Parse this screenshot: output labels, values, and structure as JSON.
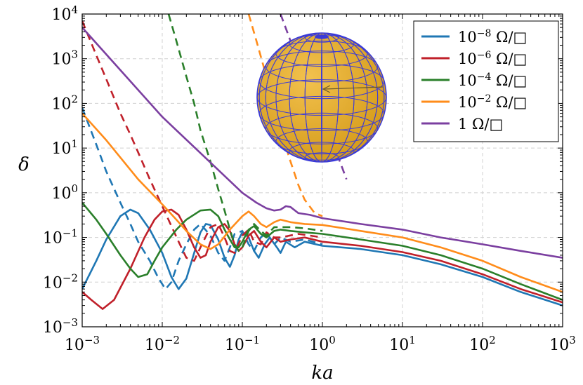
{
  "chart_data": {
    "type": "line",
    "title": "",
    "xlabel": "ka",
    "ylabel": "δ",
    "xscale": "log",
    "yscale": "log",
    "xlim": [
      0.001,
      1000
    ],
    "ylim": [
      0.001,
      10000
    ],
    "grid": true,
    "legend_position": "top-right",
    "x_ticks": [
      {
        "value": 0.001,
        "base": "10",
        "exp": "−3"
      },
      {
        "value": 0.01,
        "base": "10",
        "exp": "−2"
      },
      {
        "value": 0.1,
        "base": "10",
        "exp": "−1"
      },
      {
        "value": 1,
        "base": "10",
        "exp": "0"
      },
      {
        "value": 10,
        "base": "10",
        "exp": "1"
      },
      {
        "value": 100,
        "base": "10",
        "exp": "2"
      },
      {
        "value": 1000,
        "base": "10",
        "exp": "3"
      }
    ],
    "y_ticks": [
      {
        "value": 0.001,
        "base": "10",
        "exp": "−3"
      },
      {
        "value": 0.01,
        "base": "10",
        "exp": "−2"
      },
      {
        "value": 0.1,
        "base": "10",
        "exp": "−1"
      },
      {
        "value": 1,
        "base": "10",
        "exp": "0"
      },
      {
        "value": 10,
        "base": "10",
        "exp": "1"
      },
      {
        "value": 100,
        "base": "10",
        "exp": "2"
      },
      {
        "value": 1000,
        "base": "10",
        "exp": "3"
      },
      {
        "value": 10000,
        "base": "10",
        "exp": "4"
      }
    ],
    "series": [
      {
        "name": "10⁻⁸ Ω/□",
        "legend_base": "10",
        "legend_exp": "−8",
        "legend_unit": " Ω/□",
        "color": "#1f77b4",
        "solid": [
          [
            0.001,
            0.007
          ],
          [
            0.0015,
            0.03
          ],
          [
            0.002,
            0.09
          ],
          [
            0.003,
            0.3
          ],
          [
            0.004,
            0.42
          ],
          [
            0.005,
            0.35
          ],
          [
            0.007,
            0.15
          ],
          [
            0.01,
            0.045
          ],
          [
            0.013,
            0.013
          ],
          [
            0.016,
            0.007
          ],
          [
            0.02,
            0.012
          ],
          [
            0.025,
            0.045
          ],
          [
            0.03,
            0.13
          ],
          [
            0.035,
            0.2
          ],
          [
            0.04,
            0.19
          ],
          [
            0.05,
            0.09
          ],
          [
            0.06,
            0.035
          ],
          [
            0.07,
            0.022
          ],
          [
            0.08,
            0.04
          ],
          [
            0.09,
            0.09
          ],
          [
            0.1,
            0.13
          ],
          [
            0.12,
            0.1
          ],
          [
            0.14,
            0.05
          ],
          [
            0.16,
            0.035
          ],
          [
            0.19,
            0.07
          ],
          [
            0.22,
            0.1
          ],
          [
            0.27,
            0.06
          ],
          [
            0.3,
            0.045
          ],
          [
            0.35,
            0.08
          ],
          [
            0.45,
            0.06
          ],
          [
            0.6,
            0.08
          ],
          [
            1,
            0.065
          ],
          [
            3,
            0.055
          ],
          [
            10,
            0.04
          ],
          [
            30,
            0.025
          ],
          [
            100,
            0.013
          ],
          [
            300,
            0.006
          ],
          [
            1000,
            0.003
          ]
        ],
        "dashed": [
          [
            0.001,
            80
          ],
          [
            0.0015,
            12
          ],
          [
            0.002,
            3
          ],
          [
            0.003,
            0.6
          ],
          [
            0.004,
            0.2
          ],
          [
            0.005,
            0.08
          ],
          [
            0.007,
            0.03
          ],
          [
            0.009,
            0.012
          ],
          [
            0.011,
            0.007
          ],
          [
            0.013,
            0.01
          ],
          [
            0.016,
            0.03
          ],
          [
            0.02,
            0.07
          ],
          [
            0.025,
            0.15
          ],
          [
            0.03,
            0.2
          ],
          [
            0.04,
            0.11
          ],
          [
            0.05,
            0.045
          ],
          [
            0.06,
            0.03
          ],
          [
            0.07,
            0.06
          ],
          [
            0.08,
            0.12
          ],
          [
            0.1,
            0.14
          ],
          [
            0.12,
            0.07
          ],
          [
            0.14,
            0.05
          ],
          [
            0.17,
            0.1
          ],
          [
            0.2,
            0.13
          ],
          [
            0.25,
            0.07
          ],
          [
            0.3,
            0.1
          ],
          [
            0.4,
            0.08
          ],
          [
            0.6,
            0.09
          ],
          [
            1,
            0.07
          ]
        ]
      },
      {
        "name": "10⁻⁶ Ω/□",
        "legend_base": "10",
        "legend_exp": "−6",
        "legend_unit": " Ω/□",
        "color": "#c0202a",
        "solid": [
          [
            0.001,
            0.006
          ],
          [
            0.0013,
            0.004
          ],
          [
            0.0018,
            0.0025
          ],
          [
            0.0025,
            0.004
          ],
          [
            0.004,
            0.02
          ],
          [
            0.006,
            0.1
          ],
          [
            0.008,
            0.25
          ],
          [
            0.01,
            0.38
          ],
          [
            0.013,
            0.42
          ],
          [
            0.016,
            0.32
          ],
          [
            0.02,
            0.15
          ],
          [
            0.025,
            0.06
          ],
          [
            0.03,
            0.035
          ],
          [
            0.035,
            0.04
          ],
          [
            0.04,
            0.08
          ],
          [
            0.05,
            0.17
          ],
          [
            0.06,
            0.2
          ],
          [
            0.07,
            0.14
          ],
          [
            0.08,
            0.07
          ],
          [
            0.09,
            0.05
          ],
          [
            0.1,
            0.06
          ],
          [
            0.12,
            0.11
          ],
          [
            0.14,
            0.14
          ],
          [
            0.17,
            0.08
          ],
          [
            0.2,
            0.06
          ],
          [
            0.25,
            0.1
          ],
          [
            0.3,
            0.08
          ],
          [
            0.4,
            0.09
          ],
          [
            0.6,
            0.1
          ],
          [
            1,
            0.08
          ],
          [
            3,
            0.065
          ],
          [
            10,
            0.047
          ],
          [
            30,
            0.03
          ],
          [
            100,
            0.015
          ],
          [
            300,
            0.007
          ],
          [
            1000,
            0.0035
          ]
        ],
        "dashed": [
          [
            0.001,
            7000
          ],
          [
            0.0015,
            1200
          ],
          [
            0.002,
            350
          ],
          [
            0.003,
            60
          ],
          [
            0.004,
            20
          ],
          [
            0.005,
            8
          ],
          [
            0.007,
            2
          ],
          [
            0.01,
            0.5
          ],
          [
            0.013,
            0.18
          ],
          [
            0.016,
            0.08
          ],
          [
            0.02,
            0.035
          ],
          [
            0.025,
            0.03
          ],
          [
            0.03,
            0.06
          ],
          [
            0.04,
            0.17
          ],
          [
            0.05,
            0.2
          ],
          [
            0.06,
            0.1
          ],
          [
            0.07,
            0.05
          ],
          [
            0.08,
            0.045
          ],
          [
            0.1,
            0.11
          ],
          [
            0.12,
            0.15
          ],
          [
            0.14,
            0.08
          ],
          [
            0.17,
            0.07
          ],
          [
            0.2,
            0.13
          ],
          [
            0.25,
            0.1
          ],
          [
            0.3,
            0.1
          ],
          [
            0.5,
            0.12
          ],
          [
            1,
            0.1
          ]
        ]
      },
      {
        "name": "10⁻⁴ Ω/□",
        "legend_base": "10",
        "legend_exp": "−4",
        "legend_unit": " Ω/□",
        "color": "#2a7f2a",
        "solid": [
          [
            0.001,
            0.6
          ],
          [
            0.0015,
            0.25
          ],
          [
            0.002,
            0.12
          ],
          [
            0.003,
            0.04
          ],
          [
            0.004,
            0.02
          ],
          [
            0.005,
            0.013
          ],
          [
            0.0065,
            0.015
          ],
          [
            0.008,
            0.03
          ],
          [
            0.01,
            0.06
          ],
          [
            0.015,
            0.15
          ],
          [
            0.02,
            0.25
          ],
          [
            0.03,
            0.4
          ],
          [
            0.04,
            0.42
          ],
          [
            0.05,
            0.3
          ],
          [
            0.06,
            0.15
          ],
          [
            0.07,
            0.09
          ],
          [
            0.08,
            0.06
          ],
          [
            0.09,
            0.06
          ],
          [
            0.1,
            0.08
          ],
          [
            0.12,
            0.15
          ],
          [
            0.14,
            0.18
          ],
          [
            0.17,
            0.12
          ],
          [
            0.2,
            0.1
          ],
          [
            0.25,
            0.14
          ],
          [
            0.3,
            0.15
          ],
          [
            0.4,
            0.14
          ],
          [
            0.6,
            0.13
          ],
          [
            1,
            0.12
          ],
          [
            3,
            0.09
          ],
          [
            10,
            0.065
          ],
          [
            30,
            0.04
          ],
          [
            100,
            0.02
          ],
          [
            300,
            0.009
          ],
          [
            1000,
            0.004
          ]
        ],
        "dashed": [
          [
            0.012,
            10000
          ],
          [
            0.015,
            2500
          ],
          [
            0.02,
            400
          ],
          [
            0.025,
            100
          ],
          [
            0.03,
            25
          ],
          [
            0.04,
            5
          ],
          [
            0.05,
            1.2
          ],
          [
            0.06,
            0.4
          ],
          [
            0.07,
            0.15
          ],
          [
            0.08,
            0.07
          ],
          [
            0.09,
            0.05
          ],
          [
            0.1,
            0.06
          ],
          [
            0.12,
            0.14
          ],
          [
            0.14,
            0.2
          ],
          [
            0.17,
            0.14
          ],
          [
            0.2,
            0.11
          ],
          [
            0.25,
            0.17
          ],
          [
            0.3,
            0.17
          ],
          [
            0.4,
            0.17
          ],
          [
            0.6,
            0.16
          ],
          [
            1,
            0.14
          ]
        ]
      },
      {
        "name": "10⁻² Ω/□",
        "legend_base": "10",
        "legend_exp": "−2",
        "legend_unit": " Ω/□",
        "color": "#ff8c1a",
        "solid": [
          [
            0.001,
            60
          ],
          [
            0.002,
            15
          ],
          [
            0.005,
            2
          ],
          [
            0.01,
            0.55
          ],
          [
            0.015,
            0.25
          ],
          [
            0.02,
            0.14
          ],
          [
            0.03,
            0.07
          ],
          [
            0.04,
            0.055
          ],
          [
            0.05,
            0.07
          ],
          [
            0.07,
            0.15
          ],
          [
            0.1,
            0.3
          ],
          [
            0.12,
            0.38
          ],
          [
            0.14,
            0.3
          ],
          [
            0.17,
            0.2
          ],
          [
            0.2,
            0.17
          ],
          [
            0.25,
            0.22
          ],
          [
            0.3,
            0.25
          ],
          [
            0.4,
            0.22
          ],
          [
            0.6,
            0.2
          ],
          [
            1,
            0.19
          ],
          [
            3,
            0.14
          ],
          [
            10,
            0.1
          ],
          [
            30,
            0.06
          ],
          [
            100,
            0.03
          ],
          [
            300,
            0.013
          ],
          [
            1000,
            0.006
          ]
        ],
        "dashed": [
          [
            0.12,
            10000
          ],
          [
            0.15,
            2500
          ],
          [
            0.2,
            400
          ],
          [
            0.25,
            100
          ],
          [
            0.3,
            25
          ],
          [
            0.4,
            5
          ],
          [
            0.5,
            1.5
          ],
          [
            0.6,
            0.7
          ],
          [
            0.8,
            0.35
          ],
          [
            1,
            0.3
          ]
        ]
      },
      {
        "name": "1 Ω/□",
        "legend_base": "1",
        "legend_exp": "",
        "legend_unit": " Ω/□",
        "color": "#7b3fa0",
        "solid": [
          [
            0.001,
            5000
          ],
          [
            0.01,
            50
          ],
          [
            0.1,
            1
          ],
          [
            0.15,
            0.6
          ],
          [
            0.2,
            0.45
          ],
          [
            0.25,
            0.4
          ],
          [
            0.3,
            0.42
          ],
          [
            0.35,
            0.5
          ],
          [
            0.4,
            0.48
          ],
          [
            0.5,
            0.35
          ],
          [
            0.7,
            0.32
          ],
          [
            1,
            0.27
          ],
          [
            3,
            0.2
          ],
          [
            10,
            0.15
          ],
          [
            30,
            0.1
          ],
          [
            100,
            0.07
          ],
          [
            300,
            0.05
          ],
          [
            1000,
            0.035
          ]
        ],
        "dashed": [
          [
            0.3,
            10000
          ],
          [
            0.4,
            2500
          ],
          [
            0.5,
            700
          ],
          [
            0.7,
            150
          ],
          [
            1,
            40
          ],
          [
            1.5,
            8
          ],
          [
            2,
            2
          ]
        ]
      }
    ]
  }
}
